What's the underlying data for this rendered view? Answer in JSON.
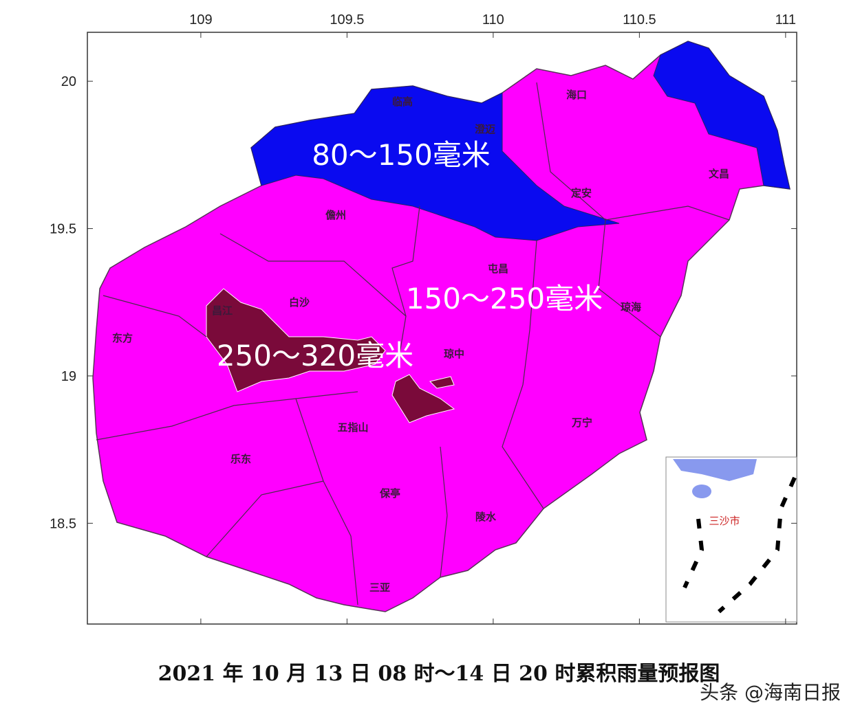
{
  "map": {
    "xlim": [
      108.612,
      111.038
    ],
    "ylim": [
      18.158,
      20.166
    ],
    "xticks": [
      109,
      109.5,
      110,
      110.5,
      111
    ],
    "yticks": [
      20,
      19.5,
      19,
      18.5
    ],
    "regions": [
      "临高",
      "澄迈",
      "海口",
      "文昌",
      "定安",
      "儋州",
      "屯昌",
      "白沙",
      "昌江",
      "东方",
      "琼中",
      "琼海",
      "五指山",
      "万宁",
      "乐东",
      "保亭",
      "陵水",
      "三亚"
    ],
    "rainfall_labels": [
      "80～150毫米",
      "150～250毫米",
      "250～320毫米"
    ],
    "inset_label": "三沙市",
    "title": "2021 年 10 月 13 日 08 时～14 日 20 时累积雨量预报图",
    "watermark": "头条 @海南日报"
  }
}
